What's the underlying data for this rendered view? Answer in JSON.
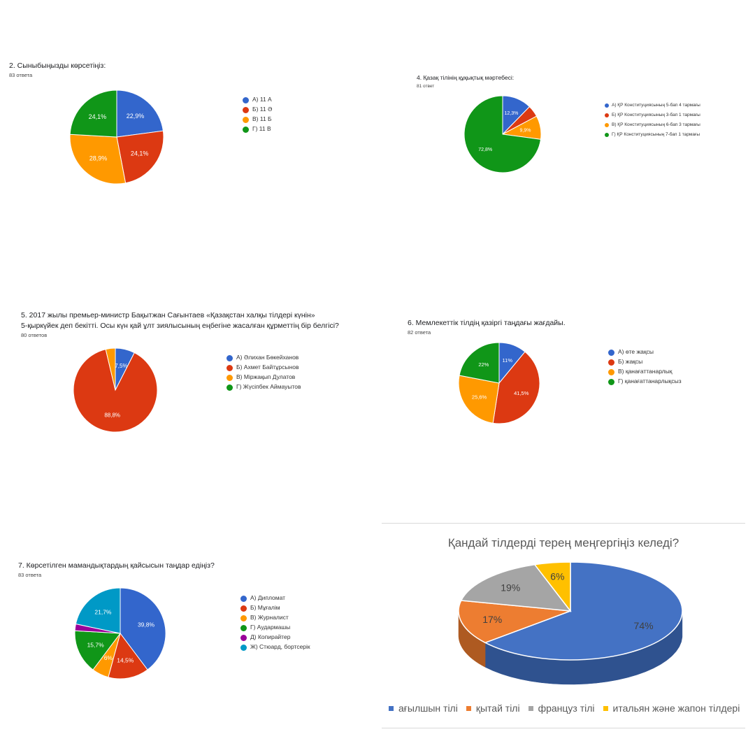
{
  "chart_data": [
    {
      "id": "q2",
      "type": "pie",
      "title": "2. Сыныбыңызды көрсетіңіз:",
      "count": "83 ответа",
      "series": [
        {
          "name": "А) 11 А",
          "value": 22.9,
          "label": "22,9%",
          "color": "#3366cc"
        },
        {
          "name": "Б) 11 Ә",
          "value": 24.1,
          "label": "24,1%",
          "color": "#dc3912"
        },
        {
          "name": "В) 11 Б",
          "value": 28.9,
          "label": "28,9%",
          "color": "#ff9900"
        },
        {
          "name": "Г) 11 В",
          "value": 24.1,
          "label": "24,1%",
          "color": "#109618"
        }
      ]
    },
    {
      "id": "q4",
      "type": "pie",
      "title": "4. Қазақ тілінің құқықтық мәртебесі:",
      "count": "81 ответ",
      "series": [
        {
          "name": "А) ҚР Конституциясының 5-бап 4 тармағы",
          "value": 12.3,
          "label": "12,3%",
          "color": "#3366cc"
        },
        {
          "name": "Б) ҚР Конституциясының 3-бап 1 тармағы",
          "value": 4.9,
          "label": "",
          "color": "#dc3912"
        },
        {
          "name": "В) ҚР Конституциясының 6-бап 3 тармағы",
          "value": 9.9,
          "label": "9,9%",
          "color": "#ff9900"
        },
        {
          "name": "Г) ҚР Конституциясының 7-бап 1 тармағы",
          "value": 72.8,
          "label": "72,8%",
          "color": "#109618"
        }
      ]
    },
    {
      "id": "q5",
      "type": "pie",
      "title": "5. 2017 жылы премьер-министр Бақытжан Сағынтаев «Қазақстан халқы тілдері күнін»",
      "title2": "5-қыркүйек деп бекітті. Осы күн қай ұлт зиялысының еңбегіне жасалған құрметтің бір белгісі?",
      "count": "80 ответов",
      "series": [
        {
          "name": "А) Әлихан Бөкейханов",
          "value": 7.5,
          "label": "7,5%",
          "color": "#3366cc"
        },
        {
          "name": "Б) Ахмет Байтұрсынов",
          "value": 88.8,
          "label": "88,8%",
          "color": "#dc3912"
        },
        {
          "name": "В) Міржақып Дулатов",
          "value": 3.7,
          "label": "",
          "color": "#ff9900"
        },
        {
          "name": "Г) Жүсіпбек Аймауытов",
          "value": 0,
          "label": "",
          "color": "#109618"
        }
      ]
    },
    {
      "id": "q6",
      "type": "pie",
      "title": "6. Мемлекеттік тілдің қазіргі таңдағы жағдайы.",
      "count": "82 ответа",
      "series": [
        {
          "name": "А) өте жақсы",
          "value": 11,
          "label": "11%",
          "color": "#3366cc"
        },
        {
          "name": "Б) жақсы",
          "value": 41.5,
          "label": "41,5%",
          "color": "#dc3912"
        },
        {
          "name": "В) қанағаттанарлық",
          "value": 25.6,
          "label": "25,6%",
          "color": "#ff9900"
        },
        {
          "name": "Г) қанағаттанарлықсыз",
          "value": 22,
          "label": "22%",
          "color": "#109618"
        }
      ]
    },
    {
      "id": "q7",
      "type": "pie",
      "title": "7. Көрсетілген мамандықтардың қайсысын таңдар едіңіз?",
      "count": "83 ответа",
      "series": [
        {
          "name": "А) Дипломат",
          "value": 39.8,
          "label": "39,8%",
          "color": "#3366cc"
        },
        {
          "name": "Б) Мұғалім",
          "value": 14.5,
          "label": "14,5%",
          "color": "#dc3912"
        },
        {
          "name": "В) Журналист",
          "value": 6,
          "label": "6%",
          "color": "#ff9900"
        },
        {
          "name": "Г) Аудармашы",
          "value": 15.7,
          "label": "15,7%",
          "color": "#109618"
        },
        {
          "name": "Д) Копирайтер",
          "value": 2.4,
          "label": "",
          "color": "#990099"
        },
        {
          "name": "Ж) Стюард, бортсерік",
          "value": 21.7,
          "label": "21,7%",
          "color": "#0099c6"
        }
      ]
    },
    {
      "id": "q8",
      "type": "pie",
      "title": "Қандай тілдерді терең меңгергіңіз келеді?",
      "series": [
        {
          "name": "ағылшын тілі",
          "value": 74,
          "label": "74%",
          "color": "#4472c4"
        },
        {
          "name": "қытай тілі",
          "value": 17,
          "label": "17%",
          "color": "#ed7d31"
        },
        {
          "name": "француз тілі",
          "value": 19,
          "label": "19%",
          "color": "#a5a5a5"
        },
        {
          "name": "итальян және жапон тілдері",
          "value": 6,
          "label": "6%",
          "color": "#ffc000"
        }
      ]
    }
  ]
}
